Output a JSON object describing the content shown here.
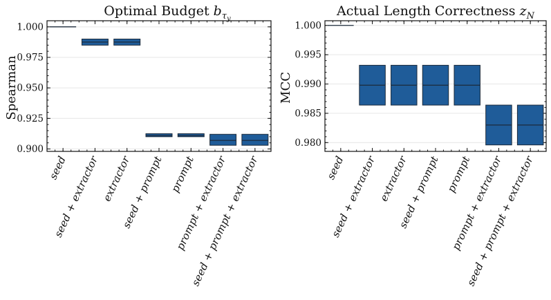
{
  "chart_data": [
    {
      "type": "box",
      "title_main": "Optimal Budget ",
      "title_var": "b",
      "title_sub": "τ",
      "title_subsub": "y",
      "ylabel": "Spearman",
      "ylim": [
        0.898,
        1.005
      ],
      "yticks": [
        0.9,
        0.925,
        0.95,
        0.975,
        1.0
      ],
      "ytick_labels": [
        "0.900",
        "0.925",
        "0.950",
        "0.975",
        "1.000"
      ],
      "ygrid": true,
      "color": "#1f5c99",
      "categories": [
        "seed",
        "seed + extractor",
        "extractor",
        "seed + prompt",
        "prompt",
        "prompt + extractor",
        "seed + prompt + extractor"
      ],
      "boxes": [
        {
          "q1": 1.0,
          "median": 1.0,
          "q3": 1.0
        },
        {
          "q1": 0.985,
          "median": 0.9875,
          "q3": 0.99
        },
        {
          "q1": 0.985,
          "median": 0.9875,
          "q3": 0.99
        },
        {
          "q1": 0.91,
          "median": 0.911,
          "q3": 0.9125
        },
        {
          "q1": 0.91,
          "median": 0.911,
          "q3": 0.9125
        },
        {
          "q1": 0.903,
          "median": 0.907,
          "q3": 0.912
        },
        {
          "q1": 0.903,
          "median": 0.907,
          "q3": 0.912
        }
      ]
    },
    {
      "type": "box",
      "title_main": "Actual Length Correctness ",
      "title_var": "z",
      "title_sub": "N",
      "title_subsub": "",
      "ylabel": "MCC",
      "ylim": [
        0.9785,
        1.0008
      ],
      "yticks": [
        0.98,
        0.985,
        0.99,
        0.995,
        1.0
      ],
      "ytick_labels": [
        "0.980",
        "0.985",
        "0.990",
        "0.995",
        "1.000"
      ],
      "ygrid": true,
      "color": "#1f5c99",
      "categories": [
        "seed",
        "seed + extractor",
        "extractor",
        "seed + prompt",
        "prompt",
        "prompt + extractor",
        "seed + prompt + extractor"
      ],
      "boxes": [
        {
          "q1": 1.0,
          "median": 1.0,
          "q3": 1.0
        },
        {
          "q1": 0.9864,
          "median": 0.9898,
          "q3": 0.9932
        },
        {
          "q1": 0.9864,
          "median": 0.9898,
          "q3": 0.9932
        },
        {
          "q1": 0.9864,
          "median": 0.9898,
          "q3": 0.9932
        },
        {
          "q1": 0.9864,
          "median": 0.9898,
          "q3": 0.9932
        },
        {
          "q1": 0.9796,
          "median": 0.983,
          "q3": 0.9864
        },
        {
          "q1": 0.9796,
          "median": 0.983,
          "q3": 0.9864
        }
      ]
    }
  ]
}
